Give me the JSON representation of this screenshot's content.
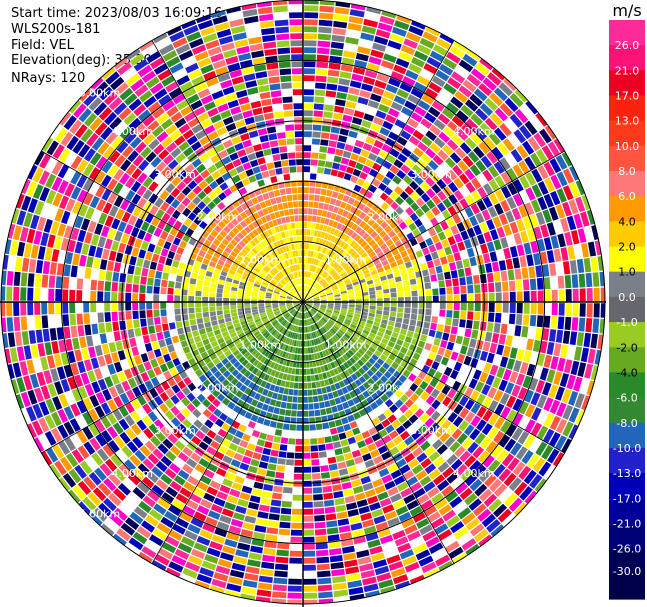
{
  "header": {
    "start_time": "Start time: 2023/08/03 16:09:16",
    "instrument": "WLS200s-181",
    "field": "Field: VEL",
    "elevation": "Elevation(deg): 35.30",
    "nrays": "NRays: 120"
  },
  "chart_data": {
    "type": "ppi",
    "field": "VEL",
    "units": "m/s",
    "elevation_deg": 35.3,
    "nrays": 120,
    "range_rings_km": [
      1,
      2,
      3,
      4,
      5
    ],
    "range_labels_inner": [
      "1.00km",
      "2.00km",
      "3.00km",
      "4.00km"
    ],
    "range_label_outer": "5.00km",
    "colorbar": {
      "unit_label": "m/s",
      "ticks": [
        "26.0",
        "21.0",
        "17.0",
        "13.0",
        "10.0",
        "8.0",
        "6.0",
        "4.0",
        "2.0",
        "1.0",
        "0.0",
        "-1.0",
        "-2.0",
        "-4.0",
        "-6.0",
        "-8.0",
        "-10.0",
        "-13.0",
        "-17.0",
        "-21.0",
        "-26.0",
        "-30.0"
      ],
      "colors": [
        "#ff2a9a",
        "#ff1177",
        "#ee0022",
        "#ff2211",
        "#ff3a1c",
        "#ff5540",
        "#ff7777",
        "#ff9900",
        "#ffcc00",
        "#ffff00",
        "#7a8089",
        "#66666f",
        "#99cc22",
        "#66aa22",
        "#2a8a2a",
        "#338833",
        "#2266bb",
        "#2222cc",
        "#0000bb",
        "#000099",
        "#000077",
        "#000055",
        "#00004a"
      ]
    }
  }
}
